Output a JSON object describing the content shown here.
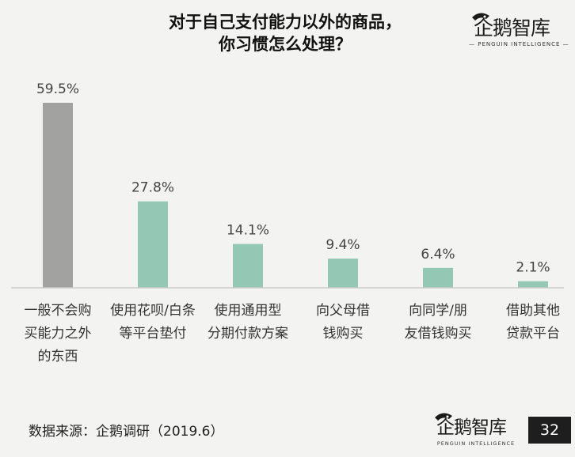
{
  "title_lines": [
    "对于自己支付能力以外的商品，",
    "你习惯怎么处理？"
  ],
  "logo": {
    "name": "企鹅智库",
    "subtitle": "— PENGUIN INTELLIGENCE —",
    "subtitle_bottom": "PENGUIN INTELLIGENCE"
  },
  "source_note": "数据来源：企鹅调研（2019.6）",
  "page_number": "32",
  "colors": {
    "first_bar": "#a2a3a0",
    "other_bars": "#94c8b5",
    "axis": "#c9c9c9"
  },
  "chart_data": {
    "type": "bar",
    "categories": [
      [
        "一般不会购",
        "买能力之外",
        "的东西"
      ],
      [
        "使用花呗/白条",
        "等平台垫付"
      ],
      [
        "使用通用型",
        "分期付款方案"
      ],
      [
        "向父母借",
        "钱购买"
      ],
      [
        "向同学/朋",
        "友借钱购买"
      ],
      [
        "借助其他",
        "贷款平台"
      ]
    ],
    "values": [
      59.5,
      27.8,
      14.1,
      9.4,
      6.4,
      2.1
    ],
    "value_labels": [
      "59.5%",
      "27.8%",
      "14.1%",
      "9.4%",
      "6.4%",
      "2.1%"
    ],
    "ylim": [
      0,
      59.5
    ],
    "grid": false,
    "legend": "none"
  }
}
